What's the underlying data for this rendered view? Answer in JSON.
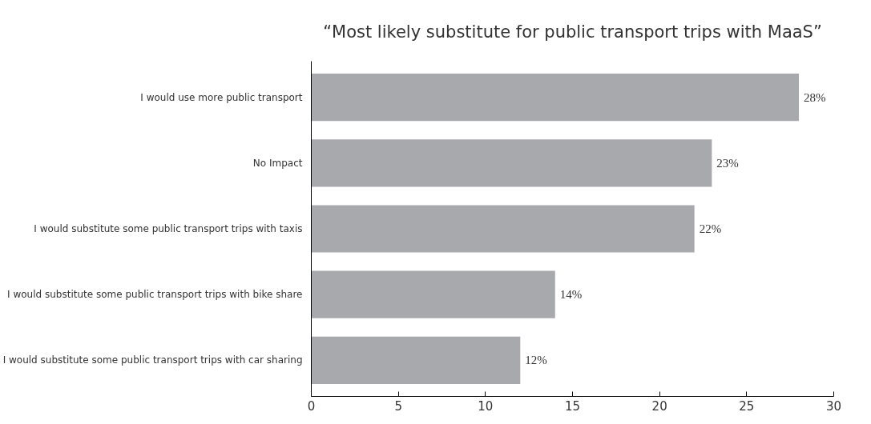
{
  "chart_data": {
    "type": "bar",
    "orientation": "horizontal",
    "title": "“Most likely substitute for public transport trips with MaaS”",
    "categories": [
      "I would use more public transport",
      "No Impact",
      "I would substitute some public transport trips with taxis",
      "I would substitute some public transport trips with bike share",
      "I would substitute some public transport trips with car sharing"
    ],
    "values": [
      28,
      23,
      22,
      14,
      12
    ],
    "value_labels": [
      "28%",
      "23%",
      "22%",
      "14%",
      "12%"
    ],
    "color": "#a7a9ac",
    "xlim": [
      0,
      30
    ],
    "xticks": [
      0,
      5,
      10,
      15,
      20,
      25,
      30
    ],
    "grid": false
  }
}
